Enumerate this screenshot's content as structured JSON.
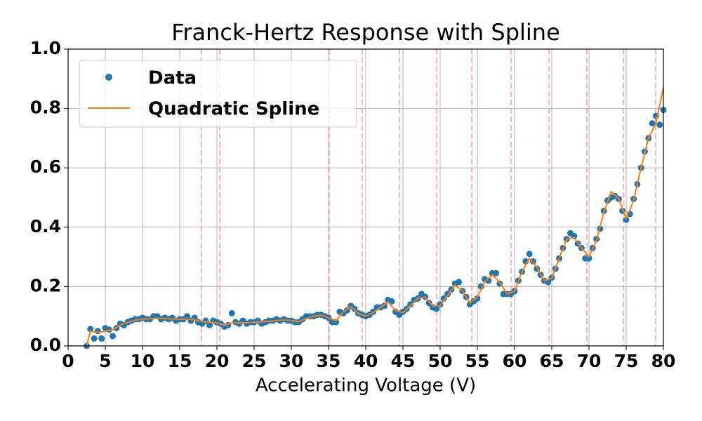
{
  "chart_data": {
    "type": "scatter",
    "title": "Franck-Hertz Response with Spline",
    "xlabel": "Accelerating Voltage (V)",
    "xlim": [
      0,
      80
    ],
    "ylim": [
      0,
      1.0
    ],
    "xticks": [
      0,
      5,
      10,
      15,
      20,
      25,
      30,
      35,
      40,
      45,
      50,
      55,
      60,
      65,
      70,
      75,
      80
    ],
    "yticks": [
      {
        "value": 0,
        "label": "0.0"
      },
      0.2,
      0.4,
      0.6,
      0.8,
      {
        "value": 1,
        "label": "1.0"
      }
    ],
    "grid": true,
    "legend": "upper left",
    "vlines": {
      "color": "#ff9999",
      "x": [
        17.92,
        20.38,
        35.09,
        39.53,
        44.53,
        49.53,
        54.25,
        59.53,
        64.62,
        69.72,
        74.62,
        78.96
      ]
    },
    "series": [
      {
        "name": "Data",
        "type": "scatter",
        "color": "#1f77b4",
        "x": [
          2.5,
          3,
          3.5,
          4,
          4.5,
          5,
          5.5,
          6,
          6.5,
          7,
          7.5,
          8,
          8.5,
          9,
          9.5,
          10,
          10.5,
          11,
          11.5,
          12,
          12.5,
          13,
          13.5,
          14,
          14.5,
          15,
          15.5,
          16,
          16.5,
          17,
          17.5,
          18,
          18.5,
          19,
          19.5,
          20,
          20.5,
          21,
          21.5,
          22,
          22.5,
          23,
          23.5,
          24,
          24.5,
          25,
          25.5,
          26,
          26.5,
          27,
          27.5,
          28,
          28.5,
          29,
          29.5,
          30,
          30.5,
          31,
          31.5,
          32,
          32.5,
          33,
          33.5,
          34,
          34.5,
          35,
          35.5,
          36,
          36.5,
          37,
          37.5,
          38,
          38.5,
          39,
          39.5,
          40,
          40.5,
          41,
          41.5,
          42,
          42.5,
          43,
          43.5,
          44,
          44.5,
          45,
          45.5,
          46,
          46.5,
          47,
          47.5,
          48,
          48.5,
          49,
          49.5,
          50,
          50.5,
          51,
          51.5,
          52,
          52.5,
          53,
          53.5,
          54,
          54.5,
          55,
          55.5,
          56,
          56.5,
          57,
          57.5,
          58,
          58.5,
          59,
          59.5,
          60,
          60.5,
          61,
          61.5,
          62,
          62.5,
          63,
          63.5,
          64,
          64.5,
          65,
          65.5,
          66,
          66.5,
          67,
          67.5,
          68,
          68.5,
          69,
          69.5,
          70,
          70.5,
          71,
          71.5,
          72,
          72.5,
          73,
          73.5,
          74,
          74.5,
          75,
          75.5,
          76,
          76.5,
          77,
          77.5,
          78,
          78.5,
          79,
          79.5,
          80
        ],
        "values": [
          0,
          0.057,
          0.025,
          0.05,
          0.025,
          0.06,
          0.055,
          0.033,
          0.06,
          0.075,
          0.07,
          0.08,
          0.085,
          0.09,
          0.09,
          0.095,
          0.09,
          0.09,
          0.1,
          0.1,
          0.09,
          0.095,
          0.09,
          0.095,
          0.085,
          0.09,
          0.09,
          0.1,
          0.085,
          0.095,
          0.08,
          0.075,
          0.085,
          0.07,
          0.085,
          0.08,
          0.075,
          0.065,
          0.07,
          0.11,
          0.08,
          0.075,
          0.085,
          0.075,
          0.08,
          0.08,
          0.085,
          0.075,
          0.08,
          0.085,
          0.085,
          0.09,
          0.085,
          0.09,
          0.085,
          0.085,
          0.08,
          0.08,
          0.09,
          0.1,
          0.1,
          0.1,
          0.105,
          0.105,
          0.1,
          0.095,
          0.08,
          0.08,
          0.115,
          0.11,
          0.12,
          0.135,
          0.125,
          0.11,
          0.105,
          0.1,
          0.105,
          0.115,
          0.13,
          0.13,
          0.135,
          0.155,
          0.15,
          0.115,
          0.105,
          0.115,
          0.125,
          0.14,
          0.155,
          0.16,
          0.175,
          0.165,
          0.145,
          0.13,
          0.125,
          0.14,
          0.16,
          0.175,
          0.19,
          0.21,
          0.215,
          0.185,
          0.165,
          0.14,
          0.15,
          0.16,
          0.2,
          0.225,
          0.22,
          0.245,
          0.245,
          0.21,
          0.175,
          0.175,
          0.175,
          0.185,
          0.22,
          0.25,
          0.285,
          0.31,
          0.285,
          0.26,
          0.24,
          0.22,
          0.215,
          0.23,
          0.26,
          0.295,
          0.33,
          0.36,
          0.38,
          0.37,
          0.345,
          0.33,
          0.295,
          0.295,
          0.33,
          0.36,
          0.395,
          0.455,
          0.49,
          0.5,
          0.505,
          0.495,
          0.455,
          0.425,
          0.445,
          0.495,
          0.545,
          0.6,
          0.655,
          0.7,
          0.75,
          0.775,
          0.745,
          0.795
        ]
      },
      {
        "name": "Quadratic Spline",
        "type": "line",
        "color": "#ff7f0e",
        "x": [
          2.5,
          3,
          4,
          5,
          6,
          7,
          8,
          9,
          10,
          11,
          12,
          13,
          14,
          15,
          16,
          17,
          18,
          19,
          20,
          21,
          22,
          23,
          24,
          25,
          26,
          27,
          28,
          29,
          30,
          31,
          32,
          33,
          34,
          35,
          36,
          37,
          38,
          39,
          40,
          41,
          42,
          43,
          44,
          45,
          46,
          47,
          48,
          49,
          50,
          51,
          52,
          53,
          54,
          55,
          56,
          57,
          58,
          59,
          60,
          61,
          62,
          63,
          64,
          65,
          66,
          67,
          68,
          69,
          70,
          71,
          72,
          73,
          74,
          75,
          76,
          77,
          78,
          79,
          80
        ],
        "values": [
          0,
          0.05,
          0.045,
          0.05,
          0.055,
          0.07,
          0.08,
          0.087,
          0.09,
          0.092,
          0.093,
          0.092,
          0.091,
          0.09,
          0.09,
          0.088,
          0.082,
          0.08,
          0.078,
          0.07,
          0.078,
          0.078,
          0.078,
          0.08,
          0.081,
          0.083,
          0.086,
          0.087,
          0.086,
          0.082,
          0.092,
          0.1,
          0.104,
          0.095,
          0.085,
          0.115,
          0.132,
          0.11,
          0.1,
          0.112,
          0.13,
          0.148,
          0.12,
          0.112,
          0.135,
          0.16,
          0.165,
          0.135,
          0.135,
          0.17,
          0.205,
          0.185,
          0.145,
          0.165,
          0.215,
          0.24,
          0.215,
          0.175,
          0.185,
          0.25,
          0.295,
          0.265,
          0.22,
          0.228,
          0.295,
          0.36,
          0.365,
          0.33,
          0.3,
          0.355,
          0.45,
          0.52,
          0.495,
          0.43,
          0.49,
          0.6,
          0.7,
          0.75,
          0.87
        ]
      }
    ]
  }
}
